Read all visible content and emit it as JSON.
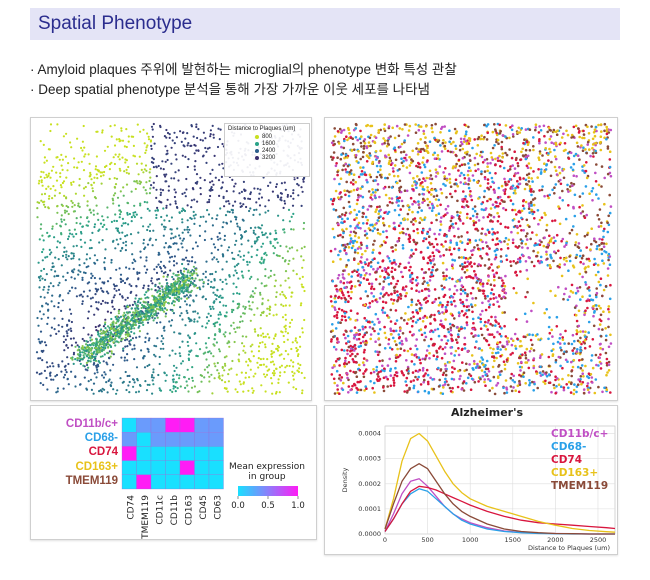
{
  "header": {
    "title": "Spatial Phenotype"
  },
  "bullets": [
    "· Amyloid plaques 주위에 발현하는 microglial의 phenotype 변화 특성 관찰",
    "· Deep spatial phenotype 분석을 통해 가장 가까운 이웃 세포를 나타냄"
  ],
  "colors": {
    "CD11b/c+": "#c04fc4",
    "CD68-": "#2aa0e8",
    "CD74": "#d8163e",
    "CD163+": "#e8c21a",
    "TMEM119": "#8a4a38"
  },
  "chart_data": [
    {
      "type": "scatter",
      "title": "",
      "legend": {
        "title": "Distance to Plaques (um)",
        "placement": "top-right",
        "entries": [
          "800",
          "1600",
          "2400",
          "3200"
        ]
      },
      "color_scale": [
        "#c8e020",
        "#2aa388",
        "#2c5e8c",
        "#3b2f6e"
      ],
      "description": "spatial cells colored by distance to plaques"
    },
    {
      "type": "scatter",
      "title": "",
      "series": [
        "CD11b/c+",
        "CD68-",
        "CD74",
        "CD163+",
        "TMEM119"
      ],
      "description": "spatial cells colored by phenotype"
    },
    {
      "type": "heatmap",
      "rows": [
        "CD11b/c+",
        "CD68-",
        "CD74",
        "CD163+",
        "TMEM119"
      ],
      "columns": [
        "CD74",
        "TMEM119",
        "CD11c",
        "CD11b",
        "CD163",
        "CD45",
        "CD63"
      ],
      "values": [
        [
          0.0,
          0.35,
          0.35,
          1.0,
          1.0,
          0.35,
          0.35
        ],
        [
          0.35,
          0.0,
          0.35,
          0.35,
          0.35,
          0.35,
          0.35
        ],
        [
          1.0,
          0.0,
          0.0,
          0.0,
          0.0,
          0.0,
          0.0
        ],
        [
          0.0,
          0.0,
          0.0,
          0.0,
          1.0,
          0.0,
          0.0
        ],
        [
          0.0,
          1.0,
          0.0,
          0.0,
          0.0,
          0.0,
          0.0
        ]
      ],
      "colorbar": {
        "label": "Mean expression\nin group",
        "ticks": [
          "0.0",
          "0.5",
          "1.0"
        ],
        "min_color": "#19e0ff",
        "max_color": "#ff1cf5"
      }
    },
    {
      "type": "line",
      "title": "Alzheimer's",
      "xlabel": "Distance to Plaques (um)",
      "ylabel": "Density",
      "xlim": [
        0,
        2700
      ],
      "ylim": [
        0,
        0.00043
      ],
      "xticks": [
        "0",
        "500",
        "1000",
        "1500",
        "2000",
        "2500"
      ],
      "yticks": [
        "0.0000",
        "0.0001",
        "0.0002",
        "0.0003",
        "0.0004"
      ],
      "grid": true,
      "legend_placement": "right",
      "x": [
        0,
        100,
        200,
        300,
        400,
        500,
        600,
        700,
        800,
        900,
        1000,
        1200,
        1400,
        1600,
        1800,
        2000,
        2200,
        2400,
        2600,
        2700
      ],
      "series": [
        {
          "name": "CD11b/c+",
          "values": [
            1e-05,
            8e-05,
            0.00016,
            0.00021,
            0.00022,
            0.00019,
            0.00015,
            0.00011,
            8e-05,
            6e-05,
            4.5e-05,
            2.5e-05,
            1.2e-05,
            6e-06,
            3e-06,
            2e-06,
            1e-06,
            0.0,
            0.0,
            0.0
          ]
        },
        {
          "name": "CD68-",
          "values": [
            1e-05,
            6e-05,
            0.00012,
            0.00016,
            0.00018,
            0.00017,
            0.00014,
            0.00011,
            8e-05,
            5.5e-05,
            4e-05,
            2e-05,
            1e-05,
            5e-06,
            2e-06,
            1e-06,
            0.0,
            0.0,
            0.0,
            0.0
          ]
        },
        {
          "name": "CD74",
          "values": [
            1e-05,
            6e-05,
            0.00012,
            0.00017,
            0.00019,
            0.000185,
            0.000175,
            0.00016,
            0.000145,
            0.00013,
            0.000115,
            9e-05,
            7e-05,
            5.5e-05,
            4.5e-05,
            4e-05,
            3.5e-05,
            3e-05,
            2.5e-05,
            2.2e-05
          ]
        },
        {
          "name": "CD163+",
          "values": [
            2e-05,
            0.00014,
            0.00029,
            0.00038,
            0.0004,
            0.00037,
            0.00031,
            0.00025,
            0.0002,
            0.000165,
            0.00014,
            0.00011,
            9e-05,
            7e-05,
            5e-05,
            3.5e-05,
            2.2e-05,
            1.4e-05,
            9e-06,
            7e-06
          ]
        },
        {
          "name": "TMEM119",
          "values": [
            2e-05,
            0.00012,
            0.00021,
            0.00026,
            0.00028,
            0.00026,
            0.00021,
            0.00016,
            0.00012,
            9e-05,
            7e-05,
            4e-05,
            2e-05,
            1e-05,
            5e-06,
            2e-06,
            1e-06,
            0.0,
            0.0,
            0.0
          ]
        }
      ]
    }
  ]
}
